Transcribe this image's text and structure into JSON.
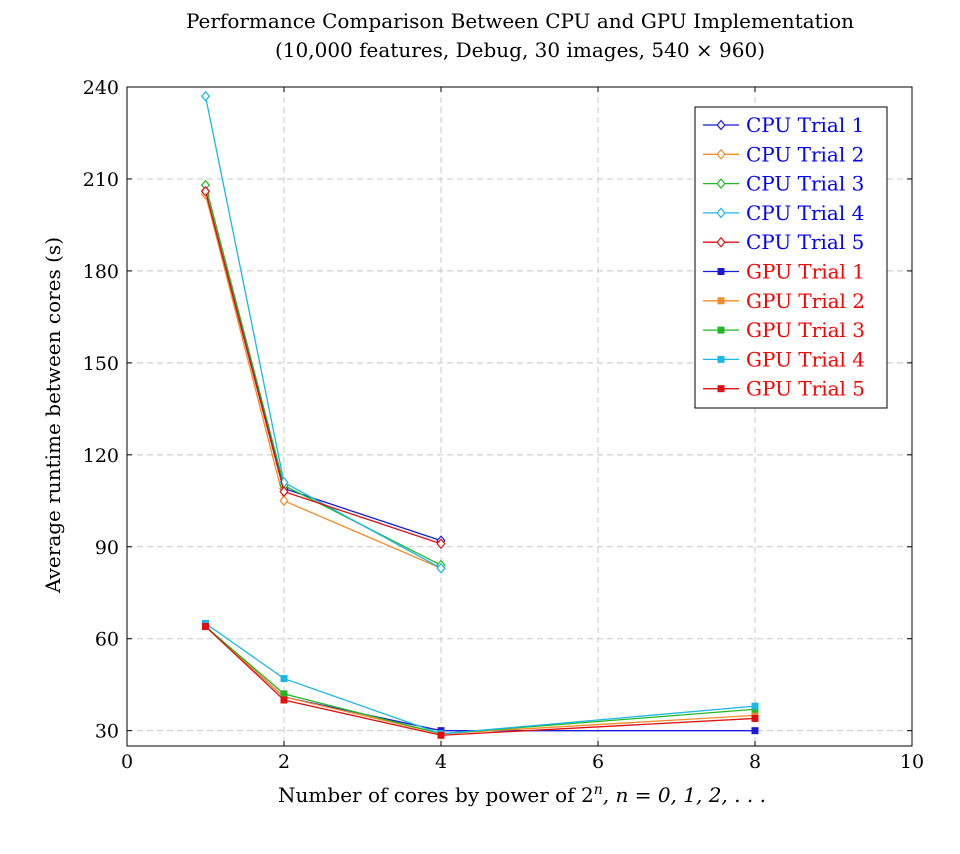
{
  "chart_data": {
    "type": "line",
    "title": "Performance Comparison Between CPU and GPU Implementation",
    "subtitle": "(10,000 features, Debug, 30 images, 540 × 960)",
    "xlabel": "Number of cores by power of 2",
    "xlabel_sup": "n",
    "xlabel_suffix": ", n = 0, 1, 2, . . .",
    "ylabel": "Average runtime between cores (s)",
    "xlim": [
      0,
      10
    ],
    "ylim": [
      25,
      240
    ],
    "x_ticks": [
      0,
      2,
      4,
      6,
      8,
      10
    ],
    "y_ticks": [
      30,
      60,
      90,
      120,
      150,
      180,
      210,
      240
    ],
    "grid": true,
    "legend_position": "top-right",
    "series": [
      {
        "name": "CPU Trial 1",
        "color": "#1a1ad6",
        "label_color": "#0000ff",
        "marker": "diamond",
        "x": [
          1,
          2,
          4
        ],
        "y": [
          206,
          109,
          92
        ]
      },
      {
        "name": "CPU Trial 2",
        "color": "#f28c28",
        "label_color": "#0000ff",
        "marker": "diamond",
        "x": [
          1,
          2,
          4
        ],
        "y": [
          205,
          105,
          83
        ]
      },
      {
        "name": "CPU Trial 3",
        "color": "#22b822",
        "label_color": "#0000ff",
        "marker": "diamond",
        "x": [
          1,
          2,
          4
        ],
        "y": [
          208,
          110,
          84
        ]
      },
      {
        "name": "CPU Trial 4",
        "color": "#1bb8e6",
        "label_color": "#0000ff",
        "marker": "diamond",
        "x": [
          1,
          2,
          4
        ],
        "y": [
          237,
          111,
          83
        ]
      },
      {
        "name": "CPU Trial 5",
        "color": "#e01010",
        "label_color": "#0000ff",
        "marker": "diamond",
        "x": [
          1,
          2,
          4
        ],
        "y": [
          206,
          108,
          91
        ]
      },
      {
        "name": "GPU Trial 1",
        "color": "#1a1ad6",
        "label_color": "#ff0000",
        "marker": "square",
        "x": [
          1,
          2,
          4,
          8
        ],
        "y": [
          64,
          41,
          30,
          30
        ]
      },
      {
        "name": "GPU Trial 2",
        "color": "#f28c28",
        "label_color": "#ff0000",
        "marker": "square",
        "x": [
          1,
          2,
          4,
          8
        ],
        "y": [
          64,
          41,
          29,
          35
        ]
      },
      {
        "name": "GPU Trial 3",
        "color": "#22b822",
        "label_color": "#ff0000",
        "marker": "square",
        "x": [
          1,
          2,
          4,
          8
        ],
        "y": [
          64,
          42,
          29,
          37
        ]
      },
      {
        "name": "GPU Trial 4",
        "color": "#1bb8e6",
        "label_color": "#ff0000",
        "marker": "square",
        "x": [
          1,
          2,
          4,
          8
        ],
        "y": [
          65,
          47,
          29,
          38
        ]
      },
      {
        "name": "GPU Trial 5",
        "color": "#e01010",
        "label_color": "#ff0000",
        "marker": "square",
        "x": [
          1,
          2,
          4,
          8
        ],
        "y": [
          64,
          40,
          28.5,
          34
        ]
      }
    ]
  }
}
